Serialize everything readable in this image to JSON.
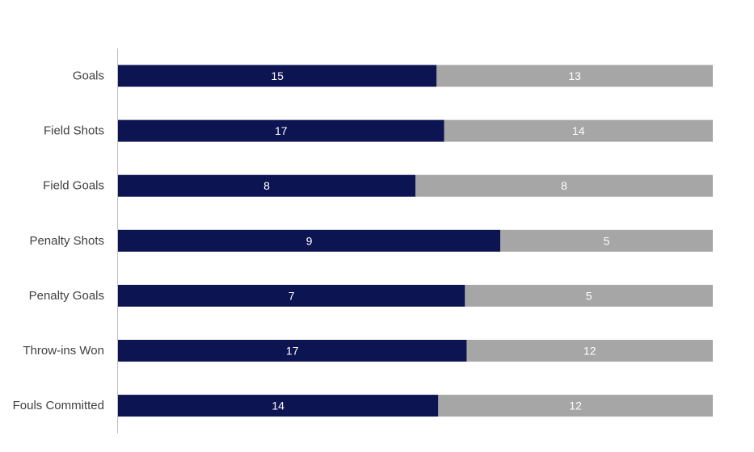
{
  "chart_data": {
    "type": "bar",
    "orientation": "horizontal",
    "stacking": "100%",
    "grid": false,
    "legend": "none",
    "categories": [
      "Goals",
      "Field Shots",
      "Field Goals",
      "Penalty Shots",
      "Penalty Goals",
      "Throw-ins Won",
      "Fouls Committed"
    ],
    "series": [
      {
        "values": [
          15,
          17,
          8,
          9,
          7,
          17,
          14
        ],
        "color": "#0c1452"
      },
      {
        "values": [
          13,
          14,
          8,
          5,
          5,
          12,
          12
        ],
        "color": "#a6a6a6"
      }
    ],
    "title": "",
    "xlabel": "",
    "ylabel": ""
  }
}
